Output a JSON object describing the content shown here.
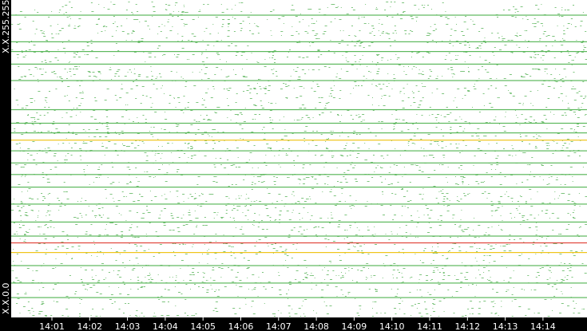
{
  "chart_data": {
    "type": "heatmap",
    "title": "",
    "xlabel": "",
    "ylabel": "",
    "x_ticks": [
      "14:01",
      "14:02",
      "14:03",
      "14:04",
      "14:05",
      "14:06",
      "14:07",
      "14:08",
      "14:09",
      "14:10",
      "14:11",
      "14:12",
      "14:13",
      "14:14"
    ],
    "y_ticks": [
      {
        "label": "X.X.255.255",
        "value": 65535
      },
      {
        "label": "X.X.0.0",
        "value": 0
      }
    ],
    "y_range": [
      0,
      65535
    ],
    "grid": false,
    "legend": "none",
    "colors": {
      "background": "#ffffff",
      "axis": "#000000",
      "axis_text": "#ffffff",
      "activity": "#7dc47d",
      "persistent": "#5cb85c",
      "warning": "#f0c419",
      "alert": "#e0443a"
    },
    "persistent_rows": [
      {
        "address": 62500,
        "level": "normal"
      },
      {
        "address": 57000,
        "level": "normal"
      },
      {
        "address": 55000,
        "level": "normal"
      },
      {
        "address": 52400,
        "level": "normal"
      },
      {
        "address": 49000,
        "level": "normal"
      },
      {
        "address": 43000,
        "level": "normal"
      },
      {
        "address": 40200,
        "level": "normal"
      },
      {
        "address": 38200,
        "level": "normal"
      },
      {
        "address": 36700,
        "level": "warning"
      },
      {
        "address": 34500,
        "level": "normal"
      },
      {
        "address": 32000,
        "level": "normal"
      },
      {
        "address": 29600,
        "level": "normal"
      },
      {
        "address": 27000,
        "level": "normal"
      },
      {
        "address": 23500,
        "level": "normal"
      },
      {
        "address": 19800,
        "level": "normal"
      },
      {
        "address": 16900,
        "level": "normal"
      },
      {
        "address": 15500,
        "level": "alert"
      },
      {
        "address": 13500,
        "level": "warning"
      },
      {
        "address": 10800,
        "level": "normal"
      },
      {
        "address": 7200,
        "level": "normal"
      },
      {
        "address": 4200,
        "level": "normal"
      }
    ]
  }
}
